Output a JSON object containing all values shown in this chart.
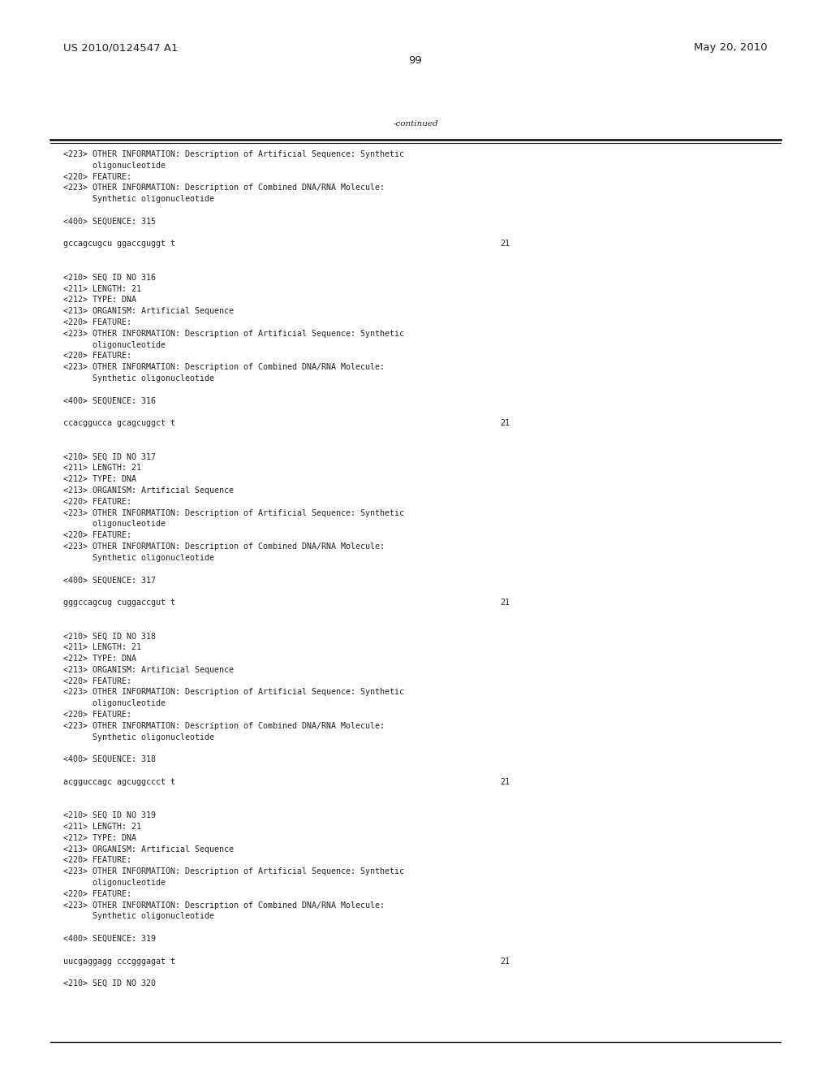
{
  "header_left": "US 2010/0124547 A1",
  "header_right": "May 20, 2010",
  "page_number": "99",
  "continued_label": "-continued",
  "background_color": "#ffffff",
  "text_color": "#231f20",
  "font_size_header": 9.5,
  "font_size_body": 7.5,
  "font_size_mono": 7.2,
  "lines": [
    {
      "text": "<223> OTHER INFORMATION: Description of Artificial Sequence: Synthetic",
      "indent": false,
      "seq": false
    },
    {
      "text": "      oligonucleotide",
      "indent": false,
      "seq": false
    },
    {
      "text": "<220> FEATURE:",
      "indent": false,
      "seq": false
    },
    {
      "text": "<223> OTHER INFORMATION: Description of Combined DNA/RNA Molecule:",
      "indent": false,
      "seq": false
    },
    {
      "text": "      Synthetic oligonucleotide",
      "indent": false,
      "seq": false
    },
    {
      "text": "",
      "indent": false,
      "seq": false
    },
    {
      "text": "<400> SEQUENCE: 315",
      "indent": false,
      "seq": false
    },
    {
      "text": "",
      "indent": false,
      "seq": false
    },
    {
      "text": "gccagcugcu ggaccguggt t",
      "indent": false,
      "seq": true,
      "num": "21"
    },
    {
      "text": "",
      "indent": false,
      "seq": false
    },
    {
      "text": "",
      "indent": false,
      "seq": false
    },
    {
      "text": "<210> SEQ ID NO 316",
      "indent": false,
      "seq": false
    },
    {
      "text": "<211> LENGTH: 21",
      "indent": false,
      "seq": false
    },
    {
      "text": "<212> TYPE: DNA",
      "indent": false,
      "seq": false
    },
    {
      "text": "<213> ORGANISM: Artificial Sequence",
      "indent": false,
      "seq": false
    },
    {
      "text": "<220> FEATURE:",
      "indent": false,
      "seq": false
    },
    {
      "text": "<223> OTHER INFORMATION: Description of Artificial Sequence: Synthetic",
      "indent": false,
      "seq": false
    },
    {
      "text": "      oligonucleotide",
      "indent": false,
      "seq": false
    },
    {
      "text": "<220> FEATURE:",
      "indent": false,
      "seq": false
    },
    {
      "text": "<223> OTHER INFORMATION: Description of Combined DNA/RNA Molecule:",
      "indent": false,
      "seq": false
    },
    {
      "text": "      Synthetic oligonucleotide",
      "indent": false,
      "seq": false
    },
    {
      "text": "",
      "indent": false,
      "seq": false
    },
    {
      "text": "<400> SEQUENCE: 316",
      "indent": false,
      "seq": false
    },
    {
      "text": "",
      "indent": false,
      "seq": false
    },
    {
      "text": "ccacggucca gcagcuggct t",
      "indent": false,
      "seq": true,
      "num": "21"
    },
    {
      "text": "",
      "indent": false,
      "seq": false
    },
    {
      "text": "",
      "indent": false,
      "seq": false
    },
    {
      "text": "<210> SEQ ID NO 317",
      "indent": false,
      "seq": false
    },
    {
      "text": "<211> LENGTH: 21",
      "indent": false,
      "seq": false
    },
    {
      "text": "<212> TYPE: DNA",
      "indent": false,
      "seq": false
    },
    {
      "text": "<213> ORGANISM: Artificial Sequence",
      "indent": false,
      "seq": false
    },
    {
      "text": "<220> FEATURE:",
      "indent": false,
      "seq": false
    },
    {
      "text": "<223> OTHER INFORMATION: Description of Artificial Sequence: Synthetic",
      "indent": false,
      "seq": false
    },
    {
      "text": "      oligonucleotide",
      "indent": false,
      "seq": false
    },
    {
      "text": "<220> FEATURE:",
      "indent": false,
      "seq": false
    },
    {
      "text": "<223> OTHER INFORMATION: Description of Combined DNA/RNA Molecule:",
      "indent": false,
      "seq": false
    },
    {
      "text": "      Synthetic oligonucleotide",
      "indent": false,
      "seq": false
    },
    {
      "text": "",
      "indent": false,
      "seq": false
    },
    {
      "text": "<400> SEQUENCE: 317",
      "indent": false,
      "seq": false
    },
    {
      "text": "",
      "indent": false,
      "seq": false
    },
    {
      "text": "gggccagcug cuggaccgut t",
      "indent": false,
      "seq": true,
      "num": "21"
    },
    {
      "text": "",
      "indent": false,
      "seq": false
    },
    {
      "text": "",
      "indent": false,
      "seq": false
    },
    {
      "text": "<210> SEQ ID NO 318",
      "indent": false,
      "seq": false
    },
    {
      "text": "<211> LENGTH: 21",
      "indent": false,
      "seq": false
    },
    {
      "text": "<212> TYPE: DNA",
      "indent": false,
      "seq": false
    },
    {
      "text": "<213> ORGANISM: Artificial Sequence",
      "indent": false,
      "seq": false
    },
    {
      "text": "<220> FEATURE:",
      "indent": false,
      "seq": false
    },
    {
      "text": "<223> OTHER INFORMATION: Description of Artificial Sequence: Synthetic",
      "indent": false,
      "seq": false
    },
    {
      "text": "      oligonucleotide",
      "indent": false,
      "seq": false
    },
    {
      "text": "<220> FEATURE:",
      "indent": false,
      "seq": false
    },
    {
      "text": "<223> OTHER INFORMATION: Description of Combined DNA/RNA Molecule:",
      "indent": false,
      "seq": false
    },
    {
      "text": "      Synthetic oligonucleotide",
      "indent": false,
      "seq": false
    },
    {
      "text": "",
      "indent": false,
      "seq": false
    },
    {
      "text": "<400> SEQUENCE: 318",
      "indent": false,
      "seq": false
    },
    {
      "text": "",
      "indent": false,
      "seq": false
    },
    {
      "text": "acgguccagc agcuggccct t",
      "indent": false,
      "seq": true,
      "num": "21"
    },
    {
      "text": "",
      "indent": false,
      "seq": false
    },
    {
      "text": "",
      "indent": false,
      "seq": false
    },
    {
      "text": "<210> SEQ ID NO 319",
      "indent": false,
      "seq": false
    },
    {
      "text": "<211> LENGTH: 21",
      "indent": false,
      "seq": false
    },
    {
      "text": "<212> TYPE: DNA",
      "indent": false,
      "seq": false
    },
    {
      "text": "<213> ORGANISM: Artificial Sequence",
      "indent": false,
      "seq": false
    },
    {
      "text": "<220> FEATURE:",
      "indent": false,
      "seq": false
    },
    {
      "text": "<223> OTHER INFORMATION: Description of Artificial Sequence: Synthetic",
      "indent": false,
      "seq": false
    },
    {
      "text": "      oligonucleotide",
      "indent": false,
      "seq": false
    },
    {
      "text": "<220> FEATURE:",
      "indent": false,
      "seq": false
    },
    {
      "text": "<223> OTHER INFORMATION: Description of Combined DNA/RNA Molecule:",
      "indent": false,
      "seq": false
    },
    {
      "text": "      Synthetic oligonucleotide",
      "indent": false,
      "seq": false
    },
    {
      "text": "",
      "indent": false,
      "seq": false
    },
    {
      "text": "<400> SEQUENCE: 319",
      "indent": false,
      "seq": false
    },
    {
      "text": "",
      "indent": false,
      "seq": false
    },
    {
      "text": "uucgaggagg cccgggagat t",
      "indent": false,
      "seq": true,
      "num": "21"
    },
    {
      "text": "",
      "indent": false,
      "seq": false
    },
    {
      "text": "<210> SEQ ID NO 320",
      "indent": false,
      "seq": false
    }
  ]
}
